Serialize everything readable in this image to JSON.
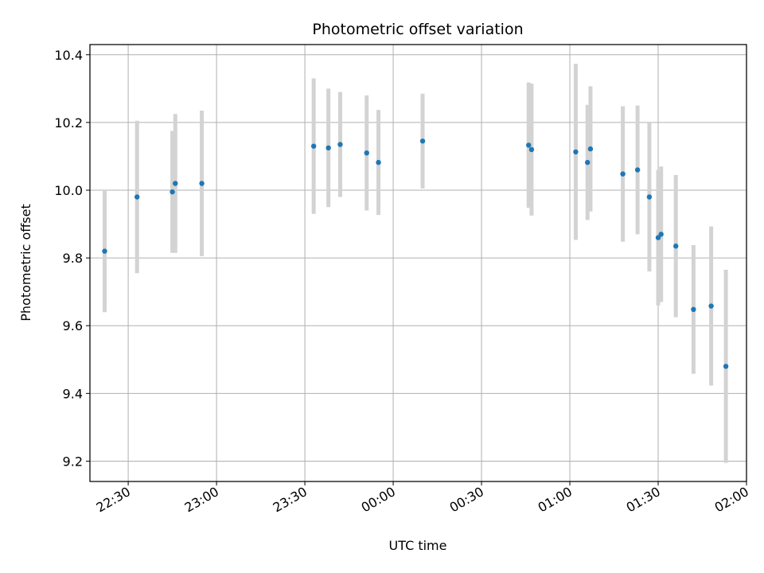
{
  "chart_data": {
    "type": "scatter",
    "title": "Photometric offset variation",
    "xlabel": "UTC time",
    "ylabel": "Photometric offset",
    "x_is_time": true,
    "xlim": [
      "22:17",
      "02:00"
    ],
    "ylim": [
      9.14,
      10.43
    ],
    "x_ticks": [
      "22:30",
      "23:00",
      "23:30",
      "00:00",
      "00:30",
      "01:00",
      "01:30",
      "02:00"
    ],
    "y_ticks": [
      "9.2",
      "9.4",
      "9.6",
      "9.8",
      "10.0",
      "10.2",
      "10.4"
    ],
    "grid": true,
    "marker_color": "#1f77b4",
    "errorbar_color": "#d3d3d3",
    "points": [
      {
        "t": "22:22",
        "y": 9.82,
        "err": 0.18
      },
      {
        "t": "22:33",
        "y": 9.98,
        "err": 0.225
      },
      {
        "t": "22:45",
        "y": 9.995,
        "err": 0.18
      },
      {
        "t": "22:46",
        "y": 10.02,
        "err": 0.205
      },
      {
        "t": "22:55",
        "y": 10.02,
        "err": 0.215
      },
      {
        "t": "23:33",
        "y": 10.13,
        "err": 0.2
      },
      {
        "t": "23:38",
        "y": 10.125,
        "err": 0.175
      },
      {
        "t": "23:42",
        "y": 10.135,
        "err": 0.155
      },
      {
        "t": "23:51",
        "y": 10.11,
        "err": 0.17
      },
      {
        "t": "23:55",
        "y": 10.082,
        "err": 0.155
      },
      {
        "t": "00:10",
        "y": 10.145,
        "err": 0.14
      },
      {
        "t": "00:46",
        "y": 10.133,
        "err": 0.185
      },
      {
        "t": "00:47",
        "y": 10.12,
        "err": 0.195
      },
      {
        "t": "01:02",
        "y": 10.113,
        "err": 0.26
      },
      {
        "t": "01:06",
        "y": 10.082,
        "err": 0.17
      },
      {
        "t": "01:07",
        "y": 10.122,
        "err": 0.185
      },
      {
        "t": "01:18",
        "y": 10.048,
        "err": 0.2
      },
      {
        "t": "01:23",
        "y": 10.06,
        "err": 0.19
      },
      {
        "t": "01:27",
        "y": 9.98,
        "err": 0.22
      },
      {
        "t": "01:30",
        "y": 9.86,
        "err": 0.2
      },
      {
        "t": "01:31",
        "y": 9.87,
        "err": 0.2
      },
      {
        "t": "01:36",
        "y": 9.835,
        "err": 0.21
      },
      {
        "t": "01:42",
        "y": 9.648,
        "err": 0.19
      },
      {
        "t": "01:48",
        "y": 9.658,
        "err": 0.235
      },
      {
        "t": "01:53",
        "y": 9.48,
        "err": 0.285
      }
    ]
  }
}
